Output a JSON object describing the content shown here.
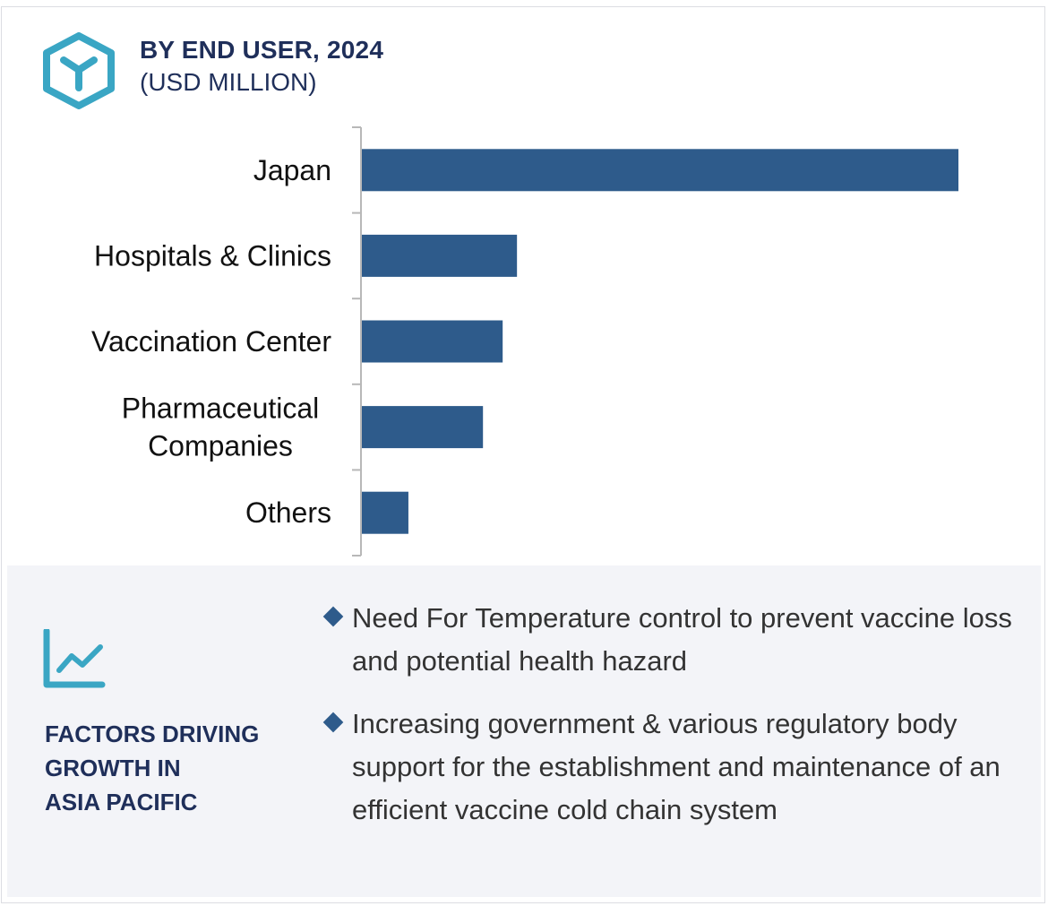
{
  "header": {
    "logo_icon": "hexagon-y-icon",
    "title": "BY END USER, 2024",
    "subtitle": "(USD MILLION)"
  },
  "chart_data": {
    "type": "bar",
    "orientation": "horizontal",
    "title": "BY END USER, 2024",
    "subtitle": "(USD MILLION)",
    "categories": [
      [
        "Japan"
      ],
      [
        "Hospitals & Clinics"
      ],
      [
        "Vaccination Center"
      ],
      [
        "Pharmaceutical",
        "Companies"
      ],
      [
        "Others"
      ]
    ],
    "values": [
      100,
      26,
      23.6,
      20.3,
      7.8
    ],
    "value_scale": "relative (no axis values shown)",
    "xlabel": "",
    "ylabel": "",
    "grid": false,
    "legend": "none",
    "bar_color": "#2e5b8b",
    "axis_color": "#b8b8b8"
  },
  "factors": {
    "icon": "trend-line-chart-icon",
    "heading_lines": [
      "FACTORS DRIVING",
      "GROWTH IN",
      "ASIA PACIFIC"
    ],
    "bullet_icon": "diamond-icon",
    "items": [
      "Need For Temperature control to prevent vaccine loss and potential health hazard",
      "Increasing government & various regulatory body support for the establishment and maintenance of an efficient vaccine cold chain system"
    ]
  },
  "colors": {
    "title": "#1f2f5a",
    "accent_teal": "#3aa6c4",
    "bar": "#2e5b8b",
    "panel_bg": "#f3f4f8",
    "body_text": "#333333"
  }
}
